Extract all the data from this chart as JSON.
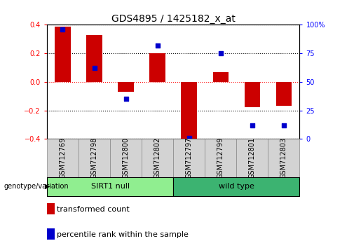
{
  "title": "GDS4895 / 1425182_x_at",
  "samples": [
    "GSM712769",
    "GSM712798",
    "GSM712800",
    "GSM712802",
    "GSM712797",
    "GSM712799",
    "GSM712801",
    "GSM712803"
  ],
  "red_values": [
    0.385,
    0.33,
    -0.07,
    0.2,
    -0.415,
    0.07,
    -0.18,
    -0.17
  ],
  "blue_pct": [
    96,
    62,
    35,
    82,
    1,
    75,
    12,
    12
  ],
  "groups": [
    {
      "label": "SIRT1 null",
      "start": 0,
      "end": 4,
      "color": "#90EE90"
    },
    {
      "label": "wild type",
      "start": 4,
      "end": 8,
      "color": "#3CB371"
    }
  ],
  "genotype_label": "genotype/variation",
  "ylim": [
    -0.4,
    0.4
  ],
  "y_ticks_left": [
    -0.4,
    -0.2,
    0.0,
    0.2,
    0.4
  ],
  "y_ticks_right": [
    0,
    25,
    50,
    75,
    100
  ],
  "legend_red": "transformed count",
  "legend_blue": "percentile rank within the sample",
  "bar_color": "#CC0000",
  "dot_color": "#0000CC",
  "title_fontsize": 10,
  "tick_fontsize": 7,
  "label_fontsize": 8,
  "bar_width": 0.5
}
